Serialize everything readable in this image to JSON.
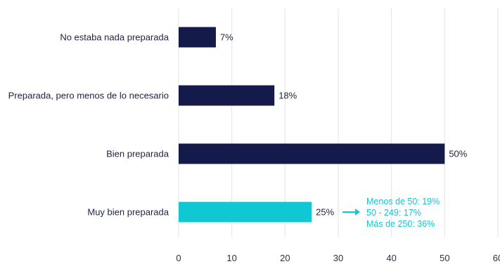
{
  "colors": {
    "bar": "#141a4a",
    "highlight": "#0fc8d4",
    "grid": "#e3e3e3",
    "text": "#1c2340"
  },
  "chart_data": {
    "type": "bar",
    "orientation": "horizontal",
    "title": "",
    "xlabel": "",
    "ylabel": "",
    "categories": [
      "No estaba nada preparada",
      "Preparada, pero menos de lo necesario",
      "Bien preparada",
      "Muy bien preparada"
    ],
    "values": [
      7,
      18,
      50,
      25
    ],
    "value_labels": [
      "7%",
      "18%",
      "50%",
      "25%"
    ],
    "highlight_index": 3,
    "xlim": [
      0,
      60
    ],
    "x_ticks": [
      "0",
      "10",
      "20",
      "30",
      "40",
      "50",
      "60"
    ],
    "grid": true,
    "annotation": {
      "arrow": true,
      "lines": [
        "Menos de 50: 19%",
        "50 - 249:  17%",
        "Más de 250: 36%"
      ]
    }
  }
}
